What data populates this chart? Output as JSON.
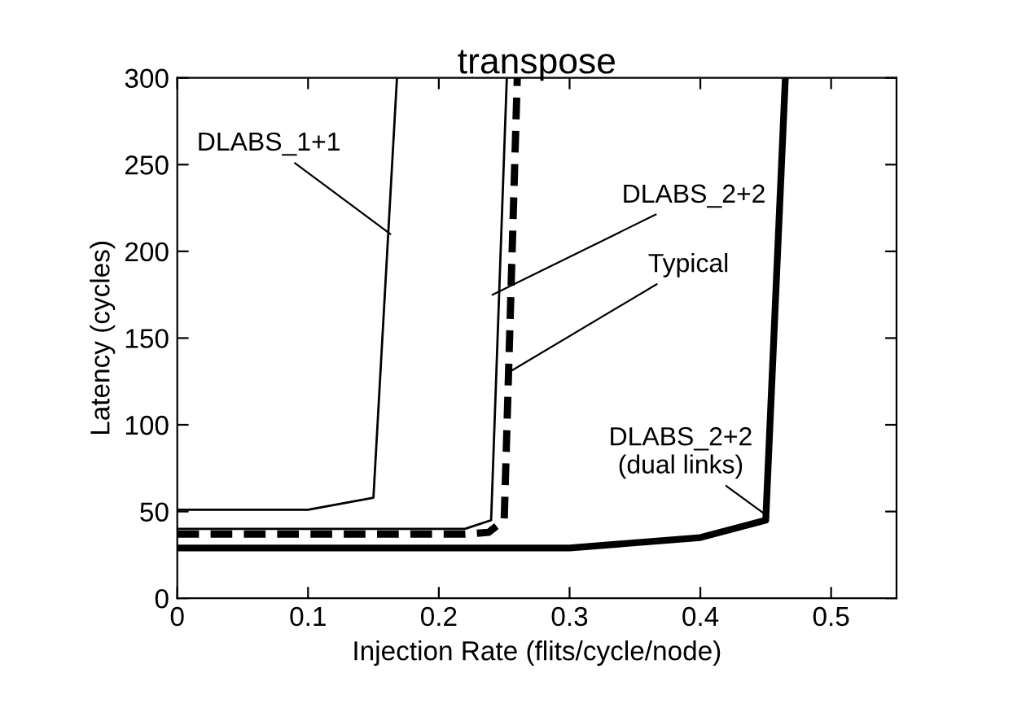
{
  "chart_data": {
    "type": "line",
    "title": "transpose",
    "xlabel": "Injection Rate (flits/cycle/node)",
    "ylabel": "Latency (cycles)",
    "xlim": [
      0,
      0.55
    ],
    "xticks": [
      0,
      0.1,
      0.2,
      0.3,
      0.4,
      0.5
    ],
    "ylim": [
      0,
      300
    ],
    "yticks": [
      0,
      50,
      100,
      150,
      200,
      250,
      300
    ],
    "grid": false,
    "legend": false,
    "marker": "none",
    "series": [
      {
        "color": "#000000",
        "line_style": "solid",
        "x": [
          0,
          0.1,
          0.15,
          0.168
        ],
        "values": [
          51,
          51,
          58,
          300
        ]
      },
      {
        "color": "#000000",
        "line_style": "solid",
        "x": [
          0,
          0.22,
          0.24,
          0.252
        ],
        "values": [
          40,
          40,
          45,
          300
        ]
      },
      {
        "color": "#000000",
        "line_style": "dashed",
        "x": [
          0,
          0.22,
          0.238,
          0.25,
          0.26
        ],
        "values": [
          37,
          37,
          38,
          45,
          300
        ]
      },
      {
        "color": "#000000",
        "line_style": "solid",
        "x": [
          0,
          0.3,
          0.4,
          0.45,
          0.465
        ],
        "values": [
          29,
          29,
          35,
          45,
          300
        ]
      }
    ],
    "annotations": [
      {
        "text": "DLABS_1+1",
        "x": 0.163,
        "y": 210
      },
      {
        "text": "DLABS_2+2",
        "x": 0.241,
        "y": 175
      },
      {
        "text": "Typical",
        "x": 0.253,
        "y": 130
      },
      {
        "text": "DLABS_2+2\n(dual links)",
        "x": 0.452,
        "y": 47
      }
    ]
  }
}
